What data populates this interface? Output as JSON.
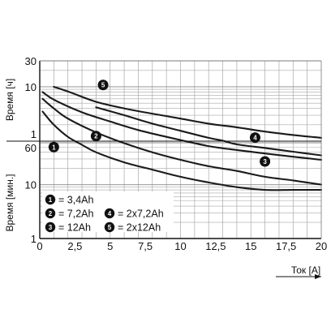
{
  "chart_data": {
    "type": "line",
    "x_axis": {
      "label": "Ток [A]",
      "range": [
        0,
        20
      ],
      "ticks": [
        {
          "v": 0,
          "label": "0"
        },
        {
          "v": 2.5,
          "label": "2,5"
        },
        {
          "v": 5,
          "label": "5"
        },
        {
          "v": 7.5,
          "label": "7,5"
        },
        {
          "v": 10,
          "label": "10"
        },
        {
          "v": 12.5,
          "label": "12,5"
        },
        {
          "v": 15,
          "label": "15"
        },
        {
          "v": 17.5,
          "label": "17,5"
        },
        {
          "v": 20,
          "label": "20"
        }
      ]
    },
    "y_axis_upper": {
      "label": "Время [ч]",
      "unit": "h",
      "scale": "log",
      "range": [
        1,
        30
      ],
      "tick_labels": [
        {
          "v": 30,
          "label": "30"
        },
        {
          "v": 10,
          "label": "10"
        },
        {
          "v": 1,
          "label": "1"
        }
      ]
    },
    "y_axis_lower": {
      "label": "Время [мин.]",
      "unit": "min",
      "scale": "log",
      "range": [
        1,
        60
      ],
      "tick_labels": [
        {
          "v": 60,
          "label": "60"
        },
        {
          "v": 10,
          "label": "10"
        },
        {
          "v": 1,
          "label": "1"
        }
      ]
    },
    "grid": true,
    "legend": {
      "placement": "bottom-left",
      "items": [
        {
          "id": "1",
          "label": "= 3,4Ah"
        },
        {
          "id": "2",
          "label": "= 7,2Ah"
        },
        {
          "id": "3",
          "label": "= 12Ah"
        },
        {
          "id": "4",
          "label": "= 2x7,2Ah"
        },
        {
          "id": "5",
          "label": "= 2x12Ah"
        }
      ]
    },
    "series": [
      {
        "id": "1",
        "points": [
          {
            "x": 0.2,
            "h": 3.5
          },
          {
            "x": 1,
            "h": 2
          },
          {
            "x": 2,
            "h": 1.2
          },
          {
            "x": 3,
            "m": 55
          },
          {
            "x": 4,
            "m": 40
          },
          {
            "x": 6,
            "m": 26
          },
          {
            "x": 8,
            "m": 19
          },
          {
            "x": 10,
            "m": 14
          },
          {
            "x": 12,
            "m": 11
          },
          {
            "x": 14,
            "m": 9
          },
          {
            "x": 16,
            "m": 8
          },
          {
            "x": 18,
            "m": 8
          },
          {
            "x": 20,
            "m": 8
          }
        ],
        "marker": {
          "x": 1,
          "m": 50
        }
      },
      {
        "id": "2",
        "points": [
          {
            "x": 0.2,
            "h": 6
          },
          {
            "x": 1,
            "h": 4
          },
          {
            "x": 2,
            "h": 2.6
          },
          {
            "x": 4,
            "h": 1.45
          },
          {
            "x": 6,
            "m": 59
          },
          {
            "x": 8,
            "m": 40
          },
          {
            "x": 10,
            "m": 29
          },
          {
            "x": 12,
            "m": 22
          },
          {
            "x": 14,
            "m": 18
          },
          {
            "x": 16,
            "m": 14
          },
          {
            "x": 18,
            "m": 12
          },
          {
            "x": 20,
            "m": 10
          }
        ],
        "marker": {
          "x": 4,
          "m": 80
        }
      },
      {
        "id": "3",
        "points": [
          {
            "x": 0.2,
            "h": 8
          },
          {
            "x": 1,
            "h": 5.8
          },
          {
            "x": 3,
            "h": 3.4
          },
          {
            "x": 5,
            "h": 2.3
          },
          {
            "x": 7,
            "h": 1.6
          },
          {
            "x": 9,
            "h": 1.2
          },
          {
            "x": 10,
            "h": 1.05
          },
          {
            "x": 12,
            "m": 52
          },
          {
            "x": 14,
            "m": 44
          },
          {
            "x": 16,
            "m": 38
          },
          {
            "x": 18,
            "m": 33
          },
          {
            "x": 20,
            "m": 29
          }
        ],
        "marker": {
          "x": 16,
          "m": 27
        }
      },
      {
        "id": "4",
        "points": [
          {
            "x": 4,
            "h": 4.2
          },
          {
            "x": 6,
            "h": 3
          },
          {
            "x": 8,
            "h": 2.1
          },
          {
            "x": 10,
            "h": 1.55
          },
          {
            "x": 12,
            "h": 1.15
          },
          {
            "x": 13,
            "h": 1.02
          },
          {
            "x": 14,
            "m": 56
          },
          {
            "x": 16,
            "m": 48
          },
          {
            "x": 18,
            "m": 41
          },
          {
            "x": 20,
            "m": 35
          }
        ],
        "marker": {
          "x": 15.3,
          "m": 75
        }
      },
      {
        "id": "5",
        "points": [
          {
            "x": 1,
            "h": 10
          },
          {
            "x": 2,
            "h": 8.2
          },
          {
            "x": 4,
            "h": 5.3
          },
          {
            "x": 6,
            "h": 4
          },
          {
            "x": 8,
            "h": 3.2
          },
          {
            "x": 10,
            "h": 2.6
          },
          {
            "x": 12,
            "h": 2.1
          },
          {
            "x": 14,
            "h": 1.8
          },
          {
            "x": 16,
            "h": 1.5
          },
          {
            "x": 18,
            "h": 1.3
          },
          {
            "x": 20,
            "h": 1.15
          }
        ],
        "marker": {
          "x": 4.5,
          "h": 10.8
        }
      }
    ]
  }
}
